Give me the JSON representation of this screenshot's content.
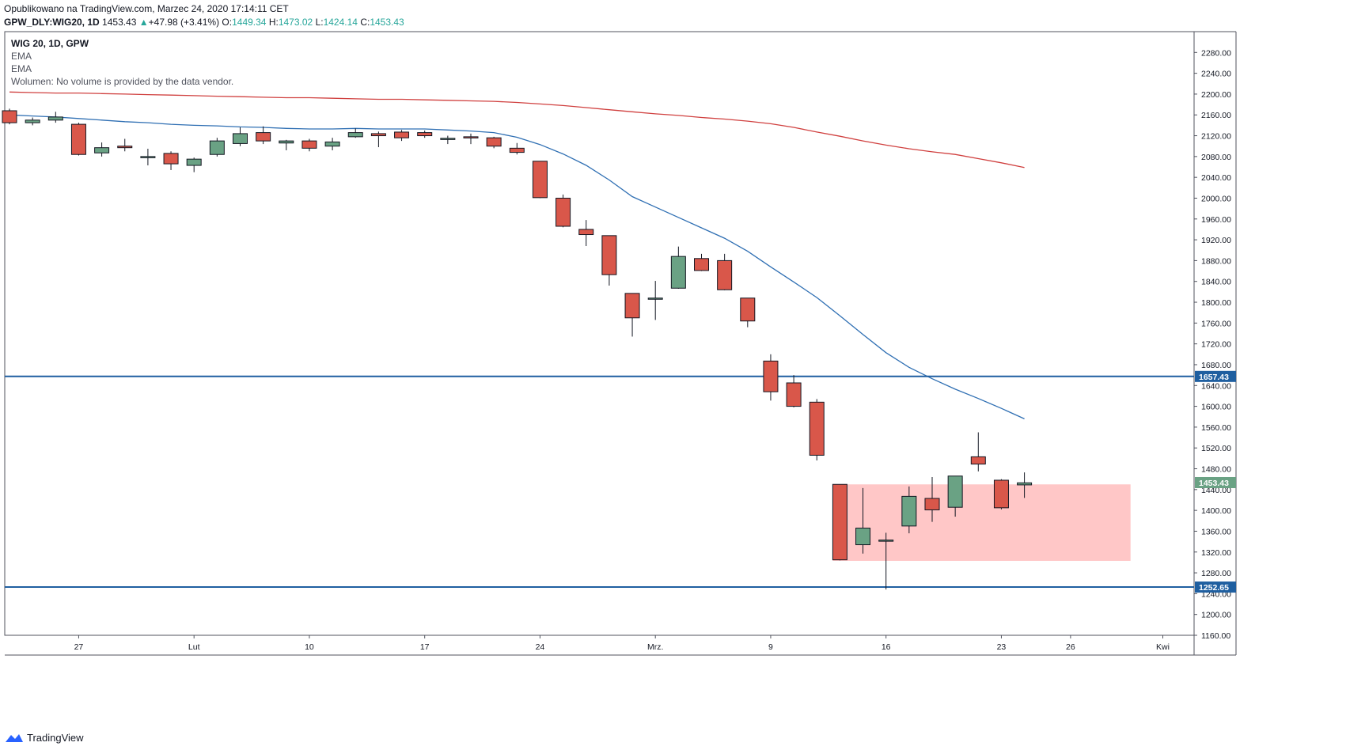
{
  "header": {
    "published": "Opublikowano na TradingView.com, Marzec 24, 2020 17:14:11 CET",
    "symbol": "GPW_DLY:WIG20, 1D",
    "last": "1453.43",
    "change": "+47.98 (+3.41%)",
    "open_label": "O:",
    "open": "1449.34",
    "high_label": "H:",
    "high": "1473.02",
    "low_label": "L:",
    "low": "1424.14",
    "close_label": "C:",
    "close": "1453.43"
  },
  "legend": {
    "title": "WIG 20, 1D, GPW",
    "ema1": "EMA",
    "ema2": "EMA",
    "volume": "Wolumen: No volume is provided by the data vendor."
  },
  "footer": {
    "brand": "TradingView"
  },
  "colors": {
    "up": "#6aa284",
    "down": "#d9574a",
    "ema_fast": "#2f6fb3",
    "ema_slow": "#d0403f",
    "level_line": "#1f5fa0",
    "zone": "#ffc4c4",
    "last_price": "#6aa284"
  },
  "chart_data": {
    "type": "candlestick",
    "title": "WIG 20, 1D, GPW",
    "ylim": [
      1160,
      2320
    ],
    "y_ticks": [
      "1160.00",
      "1200.00",
      "1240.00",
      "1280.00",
      "1320.00",
      "1360.00",
      "1400.00",
      "1440.00",
      "1480.00",
      "1520.00",
      "1560.00",
      "1600.00",
      "1640.00",
      "1680.00",
      "1720.00",
      "1760.00",
      "1800.00",
      "1840.00",
      "1880.00",
      "1920.00",
      "1960.00",
      "2000.00",
      "2040.00",
      "2080.00",
      "2120.00",
      "2160.00",
      "2200.00",
      "2240.00",
      "2280.00"
    ],
    "x_ticks": [
      {
        "label": "27",
        "idx": 3
      },
      {
        "label": "Lut",
        "idx": 8
      },
      {
        "label": "10",
        "idx": 13
      },
      {
        "label": "17",
        "idx": 18
      },
      {
        "label": "24",
        "idx": 23
      },
      {
        "label": "Mrz.",
        "idx": 28
      },
      {
        "label": "9",
        "idx": 33
      },
      {
        "label": "16",
        "idx": 38
      },
      {
        "label": "23",
        "idx": 43
      },
      {
        "label": "26",
        "idx": 46
      },
      {
        "label": "Kwi",
        "idx": 50
      }
    ],
    "candles": [
      {
        "o": 2168,
        "h": 2172,
        "l": 2142,
        "c": 2145
      },
      {
        "o": 2145,
        "h": 2155,
        "l": 2140,
        "c": 2150
      },
      {
        "o": 2150,
        "h": 2166,
        "l": 2145,
        "c": 2156
      },
      {
        "o": 2142,
        "h": 2145,
        "l": 2082,
        "c": 2084
      },
      {
        "o": 2087,
        "h": 2107,
        "l": 2080,
        "c": 2097
      },
      {
        "o": 2100,
        "h": 2114,
        "l": 2090,
        "c": 2097
      },
      {
        "o": 2080,
        "h": 2095,
        "l": 2063,
        "c": 2080
      },
      {
        "o": 2086,
        "h": 2090,
        "l": 2054,
        "c": 2066
      },
      {
        "o": 2063,
        "h": 2078,
        "l": 2050,
        "c": 2075
      },
      {
        "o": 2084,
        "h": 2116,
        "l": 2080,
        "c": 2110
      },
      {
        "o": 2105,
        "h": 2136,
        "l": 2100,
        "c": 2124
      },
      {
        "o": 2126,
        "h": 2138,
        "l": 2104,
        "c": 2110
      },
      {
        "o": 2106,
        "h": 2112,
        "l": 2092,
        "c": 2110
      },
      {
        "o": 2110,
        "h": 2114,
        "l": 2090,
        "c": 2096
      },
      {
        "o": 2100,
        "h": 2116,
        "l": 2092,
        "c": 2108
      },
      {
        "o": 2118,
        "h": 2134,
        "l": 2116,
        "c": 2126
      },
      {
        "o": 2124,
        "h": 2128,
        "l": 2098,
        "c": 2120
      },
      {
        "o": 2127,
        "h": 2131,
        "l": 2110,
        "c": 2116
      },
      {
        "o": 2126,
        "h": 2130,
        "l": 2116,
        "c": 2120
      },
      {
        "o": 2114,
        "h": 2120,
        "l": 2104,
        "c": 2115
      },
      {
        "o": 2118,
        "h": 2124,
        "l": 2104,
        "c": 2116
      },
      {
        "o": 2116,
        "h": 2118,
        "l": 2096,
        "c": 2100
      },
      {
        "o": 2096,
        "h": 2106,
        "l": 2084,
        "c": 2088
      },
      {
        "o": 2071,
        "h": 2071,
        "l": 2000,
        "c": 2001
      },
      {
        "o": 2000,
        "h": 2007,
        "l": 1944,
        "c": 1946
      },
      {
        "o": 1940,
        "h": 1958,
        "l": 1908,
        "c": 1930
      },
      {
        "o": 1928,
        "h": 1928,
        "l": 1832,
        "c": 1853
      },
      {
        "o": 1817,
        "h": 1817,
        "l": 1734,
        "c": 1770
      },
      {
        "o": 1808,
        "h": 1841,
        "l": 1766,
        "c": 1808
      },
      {
        "o": 1827,
        "h": 1907,
        "l": 1826,
        "c": 1888
      },
      {
        "o": 1884,
        "h": 1893,
        "l": 1860,
        "c": 1861
      },
      {
        "o": 1880,
        "h": 1893,
        "l": 1823,
        "c": 1824
      },
      {
        "o": 1808,
        "h": 1808,
        "l": 1752,
        "c": 1764
      },
      {
        "o": 1687,
        "h": 1700,
        "l": 1611,
        "c": 1628
      },
      {
        "o": 1645,
        "h": 1660,
        "l": 1598,
        "c": 1600
      },
      {
        "o": 1608,
        "h": 1614,
        "l": 1496,
        "c": 1506
      },
      {
        "o": 1450,
        "h": 1450,
        "l": 1304,
        "c": 1305
      },
      {
        "o": 1334,
        "h": 1443,
        "l": 1317,
        "c": 1366
      },
      {
        "o": 1343,
        "h": 1357,
        "l": 1248,
        "c": 1343
      },
      {
        "o": 1370,
        "h": 1446,
        "l": 1356,
        "c": 1427
      },
      {
        "o": 1423,
        "h": 1464,
        "l": 1378,
        "c": 1401
      },
      {
        "o": 1406,
        "h": 1465,
        "l": 1388,
        "c": 1466
      },
      {
        "o": 1503,
        "h": 1550,
        "l": 1475,
        "c": 1489
      },
      {
        "o": 1458,
        "h": 1460,
        "l": 1402,
        "c": 1405
      },
      {
        "o": 1449,
        "h": 1473,
        "l": 1424,
        "c": 1453
      }
    ],
    "ema_fast": [
      2160,
      2158,
      2156,
      2153,
      2150,
      2147,
      2145,
      2142,
      2140,
      2139,
      2137,
      2136,
      2134,
      2133,
      2133,
      2134,
      2133,
      2133,
      2133,
      2131,
      2129,
      2126,
      2117,
      2103,
      2085,
      2063,
      2035,
      2003,
      1983,
      1963,
      1943,
      1923,
      1898,
      1868,
      1839,
      1809,
      1774,
      1738,
      1703,
      1675,
      1653,
      1633,
      1615,
      1596,
      1576
    ],
    "ema_slow": [
      2204,
      2203,
      2202,
      2202,
      2201,
      2200,
      2199,
      2198,
      2197,
      2196,
      2195,
      2194,
      2193,
      2193,
      2192,
      2191,
      2190,
      2190,
      2189,
      2188,
      2187,
      2186,
      2184,
      2181,
      2178,
      2174,
      2170,
      2166,
      2162,
      2159,
      2155,
      2152,
      2148,
      2143,
      2136,
      2127,
      2119,
      2110,
      2102,
      2095,
      2089,
      2084,
      2076,
      2068,
      2059
    ],
    "levels": [
      1657.43,
      1252.65
    ],
    "level_labels": [
      "1657.43",
      "1252.65"
    ],
    "zone": {
      "from_idx": 36,
      "to_idx": 48.6,
      "top": 1450,
      "bottom": 1303
    },
    "last_price": 1453.43,
    "last_price_label": "1453.43"
  }
}
